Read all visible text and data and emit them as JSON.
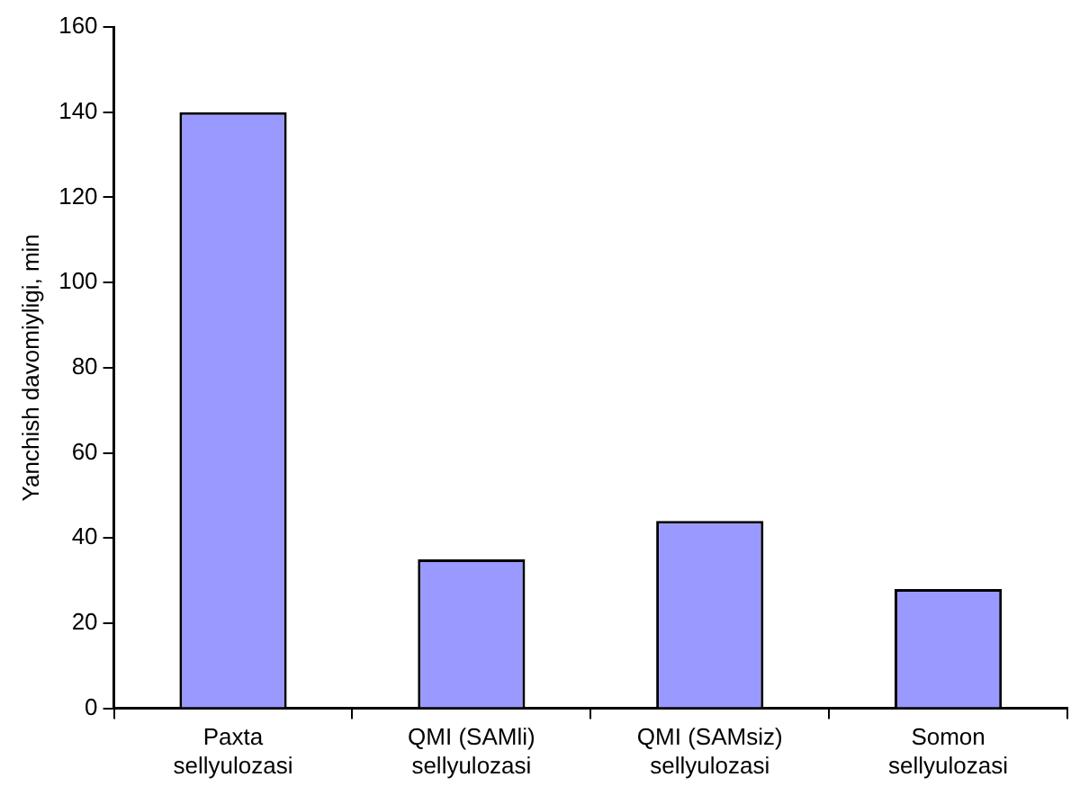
{
  "chart_data": {
    "type": "bar",
    "ylabel": "Yanchish davomiyligi, min",
    "categories": [
      "Paxta sellyulozasi",
      "QMI (SAMli) sellyulozasi",
      "QMI (SAMsiz) sellyulozasi",
      "Somon sellyulozasi"
    ],
    "values": [
      140,
      35,
      44,
      28
    ],
    "color": "#9999ff",
    "ylim": [
      0,
      160
    ],
    "yticks": [
      0,
      20,
      40,
      60,
      80,
      100,
      120,
      140,
      160
    ],
    "grid": false,
    "legend": false
  }
}
